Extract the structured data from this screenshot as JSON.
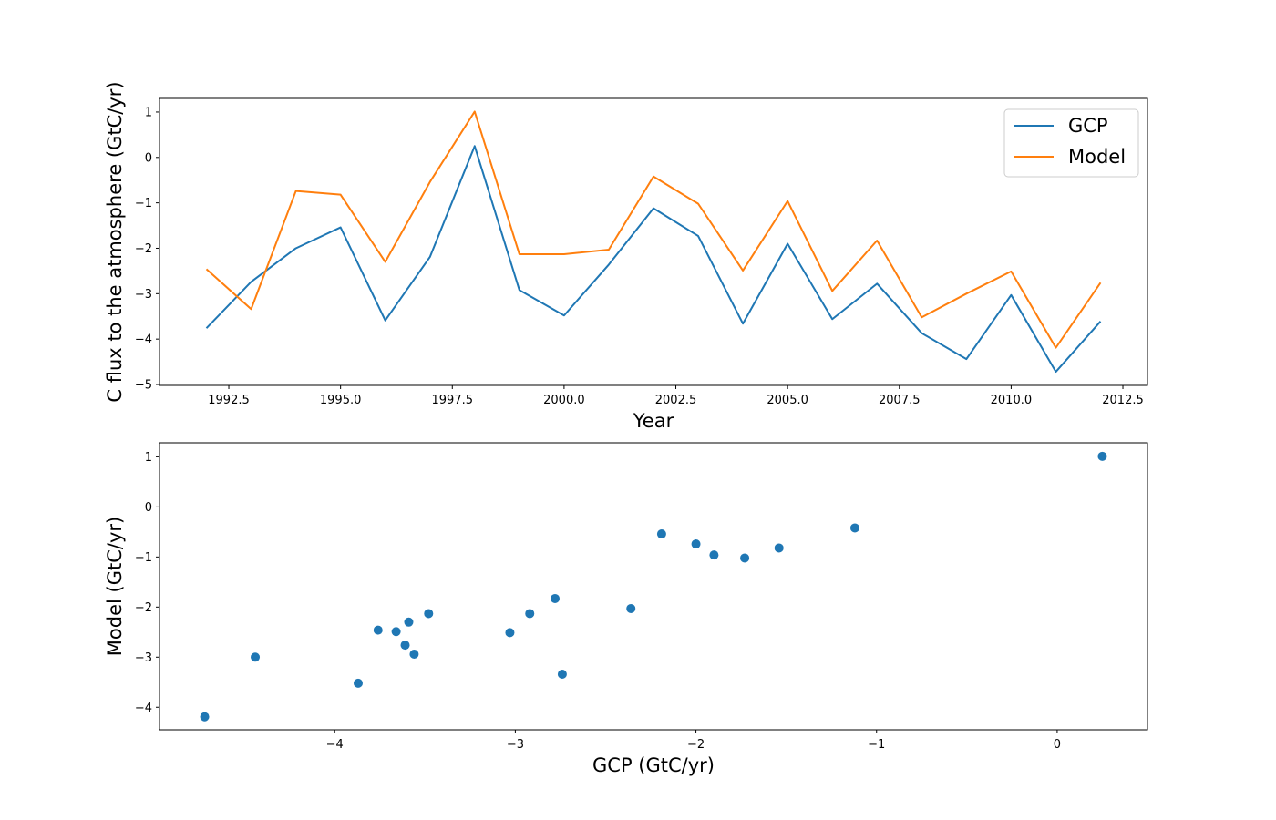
{
  "chart_data": [
    {
      "type": "line",
      "xlabel": "Year",
      "ylabel": "C flux to the atmosphere (GtC/yr)",
      "xlim": [
        1990.95,
        2013.05
      ],
      "ylim": [
        -5.02,
        1.3
      ],
      "xticks": [
        1992.5,
        1995.0,
        1997.5,
        2000.0,
        2002.5,
        2005.0,
        2007.5,
        2010.0,
        2012.5
      ],
      "xtick_labels": [
        "1992.5",
        "1995.0",
        "1997.5",
        "2000.0",
        "2002.5",
        "2005.0",
        "2007.5",
        "2010.0",
        "2012.5"
      ],
      "yticks": [
        -5,
        -4,
        -3,
        -2,
        -1,
        0,
        1
      ],
      "ytick_labels": [
        "−5",
        "−4",
        "−3",
        "−2",
        "−1",
        "0",
        "1"
      ],
      "legend": {
        "placement": "top-right"
      },
      "x": [
        1992,
        1993,
        1994,
        1995,
        1996,
        1997,
        1998,
        1999,
        2000,
        2001,
        2002,
        2003,
        2004,
        2005,
        2006,
        2007,
        2008,
        2009,
        2010,
        2011,
        2012
      ],
      "series": [
        {
          "name": "GCP",
          "color": "#1f77b4",
          "values": [
            -3.76,
            -2.74,
            -2.0,
            -1.54,
            -3.59,
            -2.19,
            0.25,
            -2.92,
            -3.48,
            -2.36,
            -1.12,
            -1.73,
            -3.66,
            -1.9,
            -3.56,
            -2.78,
            -3.87,
            -4.44,
            -3.03,
            -4.72,
            -3.61
          ]
        },
        {
          "name": "Model",
          "color": "#ff7f0e",
          "values": [
            -2.46,
            -3.34,
            -0.74,
            -0.82,
            -2.3,
            -0.54,
            1.01,
            -2.13,
            -2.13,
            -2.03,
            -0.42,
            -1.02,
            -2.49,
            -0.96,
            -2.94,
            -1.83,
            -3.52,
            -3.0,
            -2.51,
            -4.19,
            -2.76
          ]
        }
      ]
    },
    {
      "type": "scatter",
      "xlabel": "GCP (GtC/yr)",
      "ylabel": "Model (GtC/yr)",
      "xlim": [
        -4.97,
        0.5
      ],
      "ylim": [
        -4.45,
        1.28
      ],
      "xticks": [
        -4,
        -3,
        -2,
        -1,
        0
      ],
      "xtick_labels": [
        "−4",
        "−3",
        "−2",
        "−1",
        "0"
      ],
      "yticks": [
        -4,
        -3,
        -2,
        -1,
        0,
        1
      ],
      "ytick_labels": [
        "−4",
        "−3",
        "−2",
        "−1",
        "0",
        "1"
      ],
      "color": "#1f77b4",
      "points": [
        [
          -3.76,
          -2.46
        ],
        [
          -2.74,
          -3.34
        ],
        [
          -2.0,
          -0.74
        ],
        [
          -1.54,
          -0.82
        ],
        [
          -3.59,
          -2.3
        ],
        [
          -2.19,
          -0.54
        ],
        [
          0.25,
          1.01
        ],
        [
          -2.92,
          -2.13
        ],
        [
          -3.48,
          -2.13
        ],
        [
          -2.36,
          -2.03
        ],
        [
          -1.12,
          -0.42
        ],
        [
          -1.73,
          -1.02
        ],
        [
          -3.66,
          -2.49
        ],
        [
          -1.9,
          -0.96
        ],
        [
          -3.56,
          -2.94
        ],
        [
          -2.78,
          -1.83
        ],
        [
          -3.87,
          -3.52
        ],
        [
          -4.44,
          -3.0
        ],
        [
          -3.03,
          -2.51
        ],
        [
          -4.72,
          -4.19
        ],
        [
          -3.61,
          -2.76
        ]
      ]
    }
  ]
}
